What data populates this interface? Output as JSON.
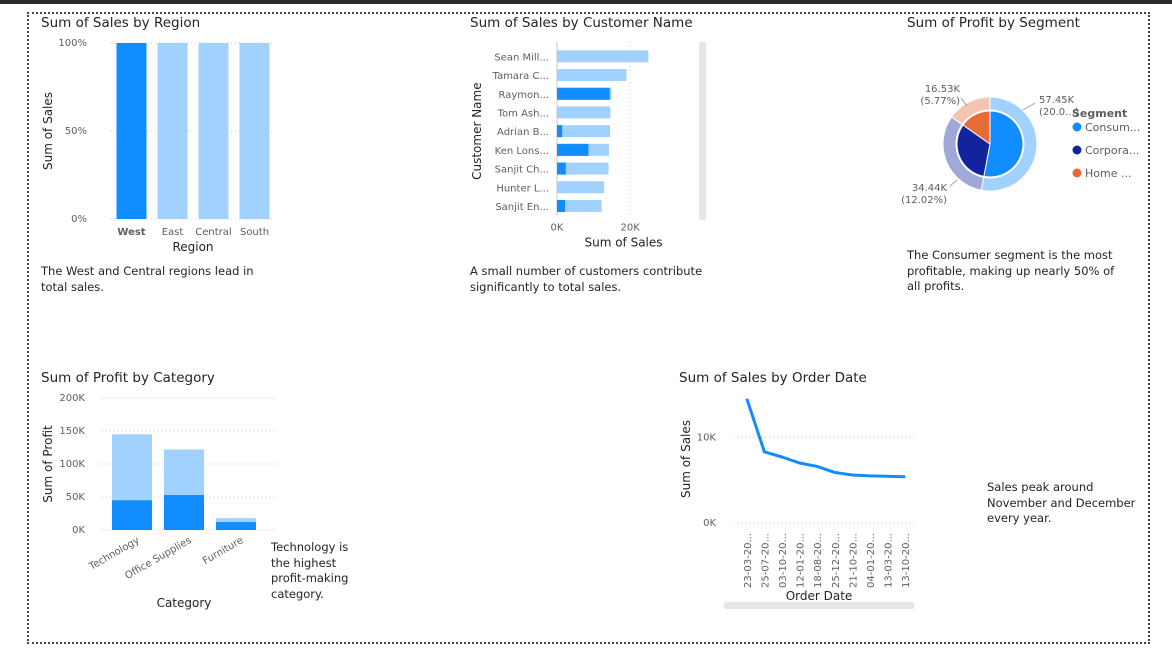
{
  "chart_data": [
    {
      "type": "bar",
      "title": "Sum of Sales by Region",
      "xlabel": "Region",
      "ylabel": "Sum of Sales",
      "categories": [
        "West",
        "East",
        "Central",
        "South"
      ],
      "values": [
        100,
        100,
        100,
        100
      ],
      "selected": "West",
      "ylim": [
        0,
        100
      ],
      "yticks": [
        "0%",
        "50%",
        "100%"
      ],
      "grid": true,
      "caption": "The West and Central regions lead in total sales.",
      "colors": {
        "selected": "#118DFF",
        "faded": "#A0D1FF"
      }
    },
    {
      "type": "bar",
      "orientation": "horizontal",
      "title": "Sum of Sales by Customer Name",
      "xlabel": "Sum of Sales",
      "ylabel": "Customer Name",
      "categories": [
        "Sean Mill...",
        "Tamara C...",
        "Raymon...",
        "Tom Ash...",
        "Adrian B...",
        "Ken Lons...",
        "Sanjit Ch...",
        "Hunter L...",
        "Sanjit En..."
      ],
      "series": [
        {
          "values": [
            25000,
            19000,
            14900,
            14600,
            14500,
            14200,
            14100,
            12900,
            12200
          ]
        },
        {
          "values": [
            0,
            0,
            14400,
            0,
            1400,
            8600,
            2400,
            0,
            2200
          ]
        }
      ],
      "xlim": [
        0,
        32000
      ],
      "xticks": [
        "0K",
        "20K"
      ],
      "grid": true,
      "caption": "A small number of customers contribute significantly to total sales.",
      "colors": {
        "highlight": "#118DFF",
        "total": "#A0D1FF"
      }
    },
    {
      "type": "pie",
      "title": "Sum of Profit by Segment",
      "legend_title": "Segment",
      "legend": [
        {
          "label": "Consum...",
          "color": "#118DFF"
        },
        {
          "label": "Corpora...",
          "color": "#12239E"
        },
        {
          "label": "Home ...",
          "color": "#E66C37"
        }
      ],
      "outer_values": [
        57.45,
        34.44,
        16.53
      ],
      "inner_values": [
        57.45,
        34.44,
        16.53
      ],
      "data_labels": [
        {
          "value": "57.45K",
          "pct": "(20.0...)"
        },
        {
          "value": "34.44K",
          "pct": "(12.02%)"
        },
        {
          "value": "16.53K",
          "pct": "(5.77%)"
        }
      ],
      "caption": "The Consumer segment is the most profitable, making up nearly 50% of all profits.",
      "colors": {
        "outer": [
          "#A0D1FF",
          "#A0A7D9",
          "#F5C4AF"
        ],
        "inner": [
          "#118DFF",
          "#12239E",
          "#E66C37"
        ]
      }
    },
    {
      "type": "bar",
      "title": "Sum of Profit by Category",
      "xlabel": "Category",
      "ylabel": "Sum of Profit",
      "categories": [
        "Technology",
        "Office Supplies",
        "Furniture"
      ],
      "series": [
        {
          "values": [
            145000,
            122000,
            18000
          ]
        },
        {
          "values": [
            45000,
            53000,
            12000
          ]
        }
      ],
      "ylim": [
        0,
        200000
      ],
      "yticks": [
        "0K",
        "50K",
        "100K",
        "150K",
        "200K"
      ],
      "grid": true,
      "caption": "Technology is the highest profit-making category.",
      "colors": {
        "highlight": "#118DFF",
        "total": "#A0D1FF"
      }
    },
    {
      "type": "line",
      "title": "Sum of Sales by Order Date",
      "xlabel": "Order Date",
      "ylabel": "Sum of Sales",
      "x": [
        "23-03-20...",
        "25-07-20...",
        "03-10-20...",
        "12-01-20...",
        "18-08-20...",
        "25-12-20...",
        "21-10-20...",
        "04-01-20...",
        "13-03-20...",
        "13-10-20..."
      ],
      "values": [
        14500,
        8300,
        7700,
        7000,
        6600,
        5900,
        5600,
        5500,
        5450,
        5400
      ],
      "ylim": [
        0,
        14000
      ],
      "yticks": [
        "0K",
        "10K"
      ],
      "grid": true,
      "caption": "Sales peak around November and December every year.",
      "colors": {
        "line": "#118DFF"
      }
    }
  ]
}
